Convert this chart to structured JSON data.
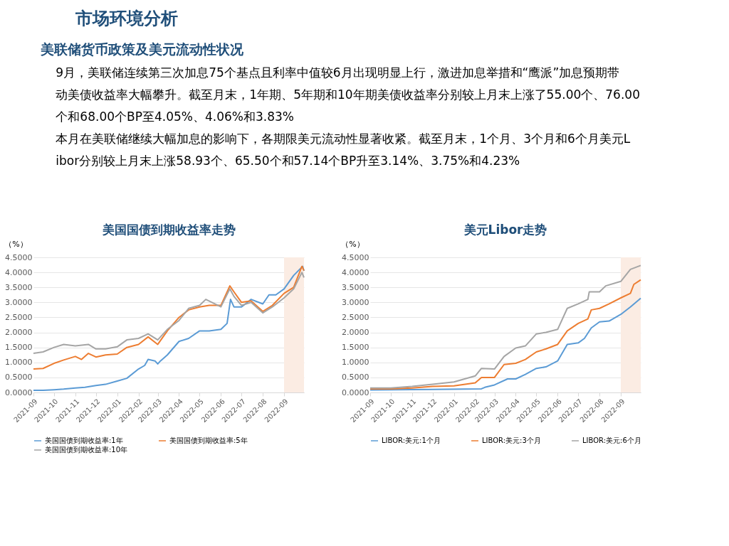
{
  "chart_data": [
    {
      "type": "other",
      "title": "市场环境分析",
      "subtitle": "美联储货币政策及美元流动性状况",
      "annotations": [
        "9月，美联储连续第三次加息75个基点且利率中值较6月出现明显上行，激进加息举措和“鹰派”加息预期带动美债收益率大幅攀升。截至月末，1年期、5年期和10年期美债收益率分别较上月末上涨了55.00个、76.00个和68.00个BP至4.05%、4.06%和3.83%",
        "本月在美联储继续大幅加息的影响下，各期限美元流动性显著收紧。截至月末，1个月、3个月和6个月美元Libor分别较上月末上涨58.93个、65.50个和57.14个BP升至3.14%、3.75%和4.23%"
      ]
    },
    {
      "type": "line",
      "title": "美国国债到期收益率走势",
      "ylabel": "（%）",
      "legend": "bottom",
      "grid": "y",
      "xlim": [
        "2021-09-01",
        "2022-09-30"
      ],
      "xticks": [
        "2021-09",
        "2021-10",
        "2021-11",
        "2021-12",
        "2022-01",
        "2022-02",
        "2022-03",
        "2022-04",
        "2022-05",
        "2022-06",
        "2022-07",
        "2022-08",
        "2022-09"
      ],
      "ylim": [
        0,
        4.5
      ],
      "yticks": [
        {
          "value": 0,
          "label": "0.0000"
        },
        {
          "value": 0.5,
          "label": "0.5000"
        },
        {
          "value": 1,
          "label": "1.0000"
        },
        {
          "value": 1.5,
          "label": "1.5000"
        },
        {
          "value": 2,
          "label": "2.0000"
        },
        {
          "value": 2.5,
          "label": "2.5000"
        },
        {
          "value": 3,
          "label": "3.0000"
        },
        {
          "value": 3.5,
          "label": "3.5000"
        },
        {
          "value": 4,
          "label": "4.0000"
        },
        {
          "value": 4.5,
          "label": "4.5000"
        }
      ],
      "bands": [
        {
          "axis": "x",
          "from": "2022-09-01",
          "to": "2022-09-30",
          "color": "#fbece3"
        }
      ],
      "series": [
        {
          "name": "美国国债到期收益率:1年",
          "color": "#5b9bd5",
          "x": [
            "2021-09-01",
            "2021-09-15",
            "2021-10-01",
            "2021-10-15",
            "2021-11-01",
            "2021-11-15",
            "2021-12-01",
            "2021-12-15",
            "2022-01-01",
            "2022-01-15",
            "2022-02-01",
            "2022-02-10",
            "2022-02-15",
            "2022-02-25",
            "2022-03-01",
            "2022-03-05",
            "2022-03-15",
            "2022-04-01",
            "2022-04-15",
            "2022-05-01",
            "2022-05-15",
            "2022-06-01",
            "2022-06-10",
            "2022-06-15",
            "2022-06-20",
            "2022-07-01",
            "2022-07-15",
            "2022-08-01",
            "2022-08-10",
            "2022-08-20",
            "2022-09-01",
            "2022-09-15",
            "2022-09-28",
            "2022-09-30"
          ],
          "values": [
            0.07,
            0.07,
            0.09,
            0.11,
            0.15,
            0.17,
            0.23,
            0.27,
            0.38,
            0.47,
            0.78,
            0.9,
            1.1,
            1.05,
            0.95,
            1.05,
            1.25,
            1.7,
            1.8,
            2.05,
            2.05,
            2.1,
            2.3,
            3.1,
            2.85,
            2.85,
            3.1,
            2.95,
            3.25,
            3.25,
            3.45,
            3.9,
            4.2,
            4.05
          ]
        },
        {
          "name": "美国国债到期收益率:5年",
          "color": "#ed7d31",
          "x": [
            "2021-09-01",
            "2021-09-15",
            "2021-10-01",
            "2021-10-15",
            "2021-11-01",
            "2021-11-10",
            "2021-11-20",
            "2021-12-01",
            "2021-12-15",
            "2022-01-01",
            "2022-01-15",
            "2022-02-01",
            "2022-02-15",
            "2022-03-01",
            "2022-03-15",
            "2022-04-01",
            "2022-04-15",
            "2022-05-01",
            "2022-05-15",
            "2022-06-01",
            "2022-06-14",
            "2022-06-20",
            "2022-07-01",
            "2022-07-15",
            "2022-08-01",
            "2022-08-15",
            "2022-09-01",
            "2022-09-15",
            "2022-09-27",
            "2022-09-30"
          ],
          "values": [
            0.78,
            0.8,
            0.97,
            1.08,
            1.2,
            1.1,
            1.3,
            1.18,
            1.25,
            1.28,
            1.5,
            1.6,
            1.85,
            1.6,
            2.05,
            2.5,
            2.75,
            2.85,
            2.9,
            2.9,
            3.55,
            3.35,
            3.0,
            3.05,
            2.7,
            2.9,
            3.3,
            3.5,
            4.2,
            4.06
          ]
        },
        {
          "name": "美国国债到期收益率:10年",
          "color": "#a5a5a5",
          "x": [
            "2021-09-01",
            "2021-09-15",
            "2021-10-01",
            "2021-10-15",
            "2021-11-01",
            "2021-11-20",
            "2021-12-01",
            "2021-12-15",
            "2022-01-01",
            "2022-01-15",
            "2022-02-01",
            "2022-02-15",
            "2022-03-01",
            "2022-03-15",
            "2022-04-01",
            "2022-04-15",
            "2022-05-01",
            "2022-05-10",
            "2022-06-01",
            "2022-06-14",
            "2022-06-20",
            "2022-07-01",
            "2022-07-15",
            "2022-08-01",
            "2022-08-15",
            "2022-09-01",
            "2022-09-15",
            "2022-09-27",
            "2022-09-30"
          ],
          "values": [
            1.3,
            1.35,
            1.5,
            1.6,
            1.55,
            1.6,
            1.45,
            1.45,
            1.52,
            1.75,
            1.8,
            1.95,
            1.75,
            2.1,
            2.4,
            2.8,
            2.9,
            3.1,
            2.85,
            3.45,
            3.2,
            2.9,
            3.0,
            2.65,
            2.85,
            3.15,
            3.45,
            4.0,
            3.83
          ]
        }
      ]
    },
    {
      "type": "line",
      "title": "美元Libor走势",
      "ylabel": "（%）",
      "legend": "bottom",
      "grid": "y",
      "xlim": [
        "2021-09-01",
        "2022-09-30"
      ],
      "xticks": [
        "2021-09",
        "2021-10",
        "2021-11",
        "2021-12",
        "2022-01",
        "2022-02",
        "2022-03",
        "2022-04",
        "2022-05",
        "2022-06",
        "2022-07",
        "2022-08",
        "2022-09"
      ],
      "ylim": [
        0,
        4.5
      ],
      "yticks": [
        {
          "value": 0,
          "label": "0.0000"
        },
        {
          "value": 0.5,
          "label": "0.5000"
        },
        {
          "value": 1,
          "label": "1.0000"
        },
        {
          "value": 1.5,
          "label": "1.5000"
        },
        {
          "value": 2,
          "label": "2.0000"
        },
        {
          "value": 2.5,
          "label": "2.5000"
        },
        {
          "value": 3,
          "label": "3.0000"
        },
        {
          "value": 3.5,
          "label": "3.5000"
        },
        {
          "value": 4,
          "label": "4.0000"
        },
        {
          "value": 4.5,
          "label": "4.5000"
        }
      ],
      "bands": [
        {
          "axis": "x",
          "from": "2022-09-01",
          "to": "2022-09-30",
          "color": "#fbece3"
        }
      ],
      "series": [
        {
          "name": "LIBOR:美元:1个月",
          "color": "#5b9bd5",
          "x": [
            "2021-09-01",
            "2021-12-01",
            "2022-02-10",
            "2022-02-15",
            "2022-03-01",
            "2022-03-20",
            "2022-04-01",
            "2022-04-15",
            "2022-05-01",
            "2022-05-15",
            "2022-06-01",
            "2022-06-15",
            "2022-07-01",
            "2022-07-10",
            "2022-07-20",
            "2022-08-01",
            "2022-08-15",
            "2022-09-01",
            "2022-09-15",
            "2022-09-30"
          ],
          "values": [
            0.08,
            0.1,
            0.12,
            0.17,
            0.25,
            0.45,
            0.45,
            0.6,
            0.8,
            0.85,
            1.05,
            1.6,
            1.65,
            1.8,
            2.15,
            2.35,
            2.38,
            2.6,
            2.85,
            3.14
          ]
        },
        {
          "name": "LIBOR:美元:3个月",
          "color": "#ed7d31",
          "x": [
            "2021-09-01",
            "2021-10-01",
            "2021-11-01",
            "2021-12-01",
            "2022-01-01",
            "2022-02-01",
            "2022-02-10",
            "2022-03-01",
            "2022-03-15",
            "2022-04-01",
            "2022-04-15",
            "2022-05-01",
            "2022-05-15",
            "2022-06-01",
            "2022-06-15",
            "2022-07-01",
            "2022-07-15",
            "2022-07-20",
            "2022-08-01",
            "2022-08-15",
            "2022-09-01",
            "2022-09-15",
            "2022-09-20",
            "2022-09-30"
          ],
          "values": [
            0.12,
            0.12,
            0.15,
            0.2,
            0.22,
            0.32,
            0.5,
            0.5,
            0.93,
            0.97,
            1.1,
            1.35,
            1.45,
            1.6,
            2.05,
            2.3,
            2.45,
            2.75,
            2.8,
            2.95,
            3.15,
            3.3,
            3.6,
            3.75
          ]
        },
        {
          "name": "LIBOR:美元:6个月",
          "color": "#a5a5a5",
          "x": [
            "2021-09-01",
            "2021-10-01",
            "2021-11-01",
            "2021-12-01",
            "2022-01-01",
            "2022-02-01",
            "2022-02-10",
            "2022-03-01",
            "2022-03-15",
            "2022-04-01",
            "2022-04-15",
            "2022-05-01",
            "2022-05-15",
            "2022-06-01",
            "2022-06-15",
            "2022-07-01",
            "2022-07-15",
            "2022-07-17",
            "2022-08-01",
            "2022-08-10",
            "2022-09-01",
            "2022-09-15",
            "2022-09-30"
          ],
          "values": [
            0.15,
            0.15,
            0.2,
            0.27,
            0.35,
            0.55,
            0.8,
            0.78,
            1.2,
            1.48,
            1.55,
            1.95,
            2.0,
            2.1,
            2.8,
            2.95,
            3.1,
            3.35,
            3.35,
            3.55,
            3.7,
            4.1,
            4.23
          ]
        }
      ]
    }
  ]
}
